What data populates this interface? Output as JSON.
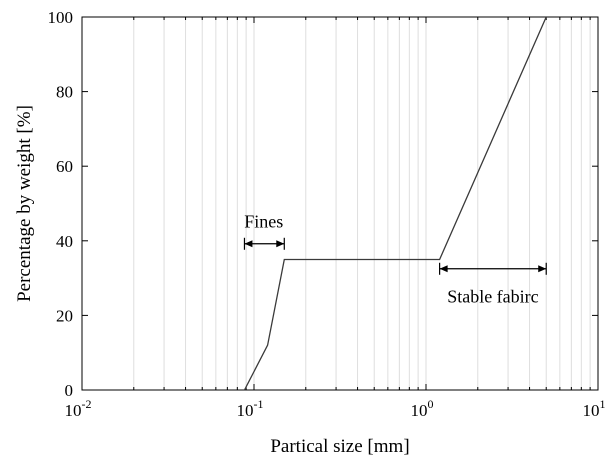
{
  "chart_data": {
    "type": "line",
    "title": "",
    "xlabel": "Partical size  [mm]",
    "ylabel": "Percentage by weight  [%]",
    "xscale": "log",
    "xlim": [
      0.01,
      10
    ],
    "ylim": [
      0,
      100
    ],
    "grid": "x-major-and-minor",
    "x_tick_values": [
      0.01,
      0.1,
      1,
      10
    ],
    "x_tick_labels": [
      {
        "base": "10",
        "exp": "-2"
      },
      {
        "base": "10",
        "exp": "-1"
      },
      {
        "base": "10",
        "exp": "0"
      },
      {
        "base": "10",
        "exp": "1"
      }
    ],
    "y_ticks": [
      0,
      20,
      40,
      60,
      80,
      100
    ],
    "series": [
      {
        "x": [
          0.088,
          0.12,
          0.15,
          1.2,
          5.0
        ],
        "y": [
          0,
          12,
          35,
          35,
          100
        ],
        "color": "#3a3a3a"
      }
    ],
    "annotations": [
      {
        "text": "Fines",
        "arrow_x": [
          0.088,
          0.15
        ],
        "arrow_y": 39.2,
        "text_x": 0.114,
        "text_y": 43.5
      },
      {
        "text": "Stable fabirc",
        "arrow_x": [
          1.2,
          5.0
        ],
        "arrow_y": 32.5,
        "text_x": 2.45,
        "text_y": 23.5
      }
    ]
  }
}
